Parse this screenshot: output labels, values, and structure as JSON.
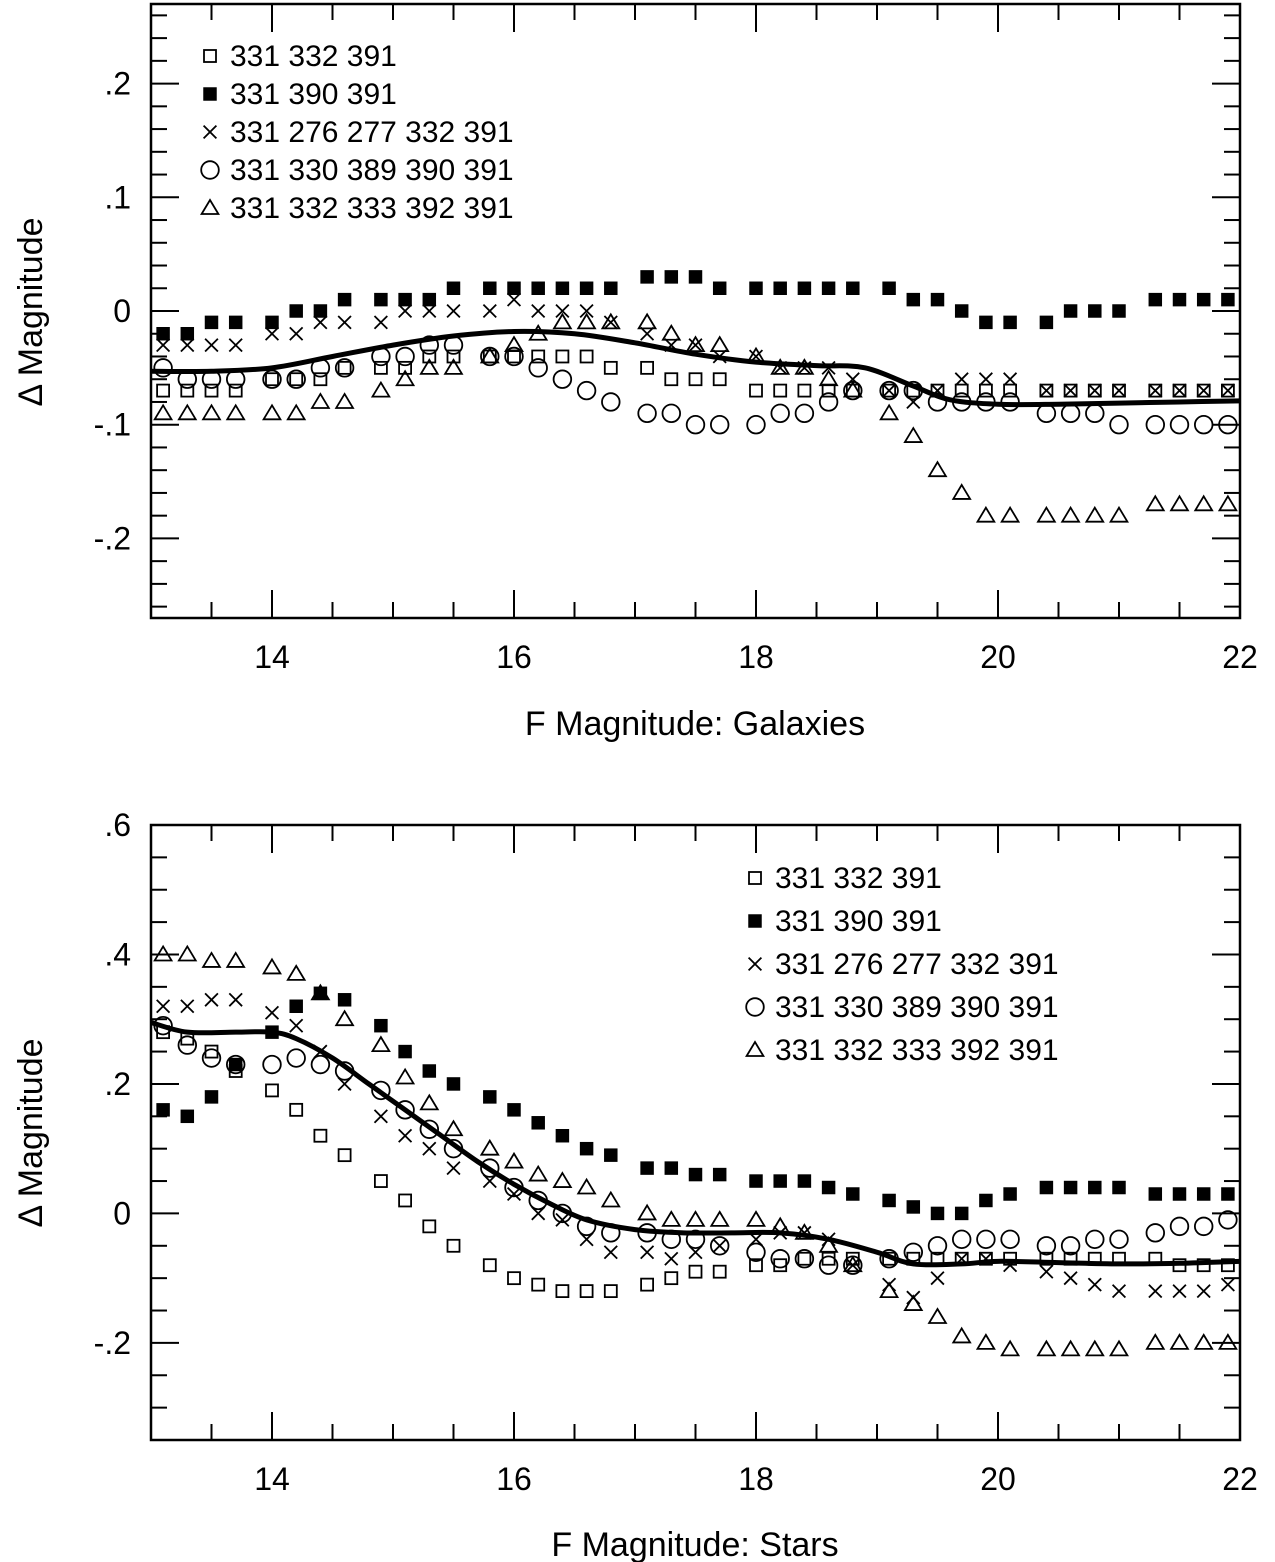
{
  "chart_data": [
    {
      "type": "scatter",
      "xlabel": "F Magnitude: Galaxies",
      "ylabel": "Δ Magnitude",
      "xlim": [
        13,
        22
      ],
      "ylim": [
        -0.27,
        0.27
      ],
      "xticks": [
        14,
        16,
        18,
        20,
        22
      ],
      "xtick_labels": [
        "14",
        "16",
        "18",
        "20",
        "22"
      ],
      "yticks": [
        -0.2,
        -0.1,
        0,
        0.1,
        0.2
      ],
      "ytick_labels": [
        "-.2",
        "-.1",
        "0",
        ".1",
        ".2"
      ],
      "legend_position": "top-left",
      "x": [
        13.1,
        13.3,
        13.5,
        13.7,
        14.0,
        14.2,
        14.4,
        14.6,
        14.9,
        15.1,
        15.3,
        15.5,
        15.8,
        16.0,
        16.2,
        16.4,
        16.6,
        16.8,
        17.1,
        17.3,
        17.5,
        17.7,
        18.0,
        18.2,
        18.4,
        18.6,
        18.8,
        19.1,
        19.3,
        19.5,
        19.7,
        19.9,
        20.1,
        20.4,
        20.6,
        20.8,
        21.0,
        21.3,
        21.5,
        21.7,
        21.9
      ],
      "series": [
        {
          "name": "331 332 391",
          "marker": "open-square",
          "values": [
            -0.07,
            -0.07,
            -0.07,
            -0.07,
            -0.06,
            -0.06,
            -0.06,
            -0.05,
            -0.05,
            -0.05,
            -0.04,
            -0.04,
            -0.04,
            -0.04,
            -0.04,
            -0.04,
            -0.04,
            -0.05,
            -0.05,
            -0.06,
            -0.06,
            -0.06,
            -0.07,
            -0.07,
            -0.07,
            -0.07,
            -0.07,
            -0.07,
            -0.07,
            -0.07,
            -0.07,
            -0.07,
            -0.07,
            -0.07,
            -0.07,
            -0.07,
            -0.07,
            -0.07,
            -0.07,
            -0.07,
            -0.07
          ]
        },
        {
          "name": "331 390 391",
          "marker": "filled-square",
          "values": [
            -0.02,
            -0.02,
            -0.01,
            -0.01,
            -0.01,
            0.0,
            0.0,
            0.01,
            0.01,
            0.01,
            0.01,
            0.02,
            0.02,
            0.02,
            0.02,
            0.02,
            0.02,
            0.02,
            0.03,
            0.03,
            0.03,
            0.02,
            0.02,
            0.02,
            0.02,
            0.02,
            0.02,
            0.02,
            0.01,
            0.01,
            0.0,
            -0.01,
            -0.01,
            -0.01,
            0.0,
            0.0,
            0.0,
            0.01,
            0.01,
            0.01,
            0.01
          ]
        },
        {
          "name": "331 276 277 332 391",
          "marker": "cross",
          "values": [
            -0.03,
            -0.03,
            -0.03,
            -0.03,
            -0.02,
            -0.02,
            -0.01,
            -0.01,
            -0.01,
            0.0,
            0.0,
            0.0,
            0.0,
            0.01,
            0.0,
            0.0,
            0.0,
            -0.01,
            -0.02,
            -0.03,
            -0.03,
            -0.04,
            -0.04,
            -0.05,
            -0.05,
            -0.05,
            -0.06,
            -0.07,
            -0.08,
            -0.07,
            -0.06,
            -0.06,
            -0.06,
            -0.07,
            -0.07,
            -0.07,
            -0.07,
            -0.07,
            -0.07,
            -0.07,
            -0.07
          ]
        },
        {
          "name": "331 330 389 390 391",
          "marker": "open-circle",
          "values": [
            -0.05,
            -0.06,
            -0.06,
            -0.06,
            -0.06,
            -0.06,
            -0.05,
            -0.05,
            -0.04,
            -0.04,
            -0.03,
            -0.03,
            -0.04,
            -0.04,
            -0.05,
            -0.06,
            -0.07,
            -0.08,
            -0.09,
            -0.09,
            -0.1,
            -0.1,
            -0.1,
            -0.09,
            -0.09,
            -0.08,
            -0.07,
            -0.07,
            -0.07,
            -0.08,
            -0.08,
            -0.08,
            -0.08,
            -0.09,
            -0.09,
            -0.09,
            -0.1,
            -0.1,
            -0.1,
            -0.1,
            -0.1
          ]
        },
        {
          "name": "331 332 333 392 391",
          "marker": "open-triangle",
          "values": [
            -0.09,
            -0.09,
            -0.09,
            -0.09,
            -0.09,
            -0.09,
            -0.08,
            -0.08,
            -0.07,
            -0.06,
            -0.05,
            -0.05,
            -0.04,
            -0.03,
            -0.02,
            -0.01,
            -0.01,
            -0.01,
            -0.01,
            -0.02,
            -0.03,
            -0.03,
            -0.04,
            -0.05,
            -0.05,
            -0.06,
            -0.07,
            -0.09,
            -0.11,
            -0.14,
            -0.16,
            -0.18,
            -0.18,
            -0.18,
            -0.18,
            -0.18,
            -0.18,
            -0.17,
            -0.17,
            -0.17,
            -0.17
          ]
        }
      ],
      "curve": {
        "x": [
          13.0,
          13.5,
          14.0,
          14.5,
          15.0,
          15.5,
          16.0,
          16.5,
          17.0,
          17.5,
          18.0,
          18.5,
          18.9,
          19.3,
          19.6,
          20.0,
          20.5,
          21.0,
          21.5,
          22.0
        ],
        "y": [
          -0.053,
          -0.053,
          -0.05,
          -0.04,
          -0.03,
          -0.022,
          -0.018,
          -0.02,
          -0.028,
          -0.038,
          -0.045,
          -0.048,
          -0.05,
          -0.066,
          -0.078,
          -0.082,
          -0.082,
          -0.081,
          -0.08,
          -0.079
        ]
      }
    },
    {
      "type": "scatter",
      "xlabel": "F Magnitude: Stars",
      "ylabel": "Δ Magnitude",
      "xlim": [
        13,
        22
      ],
      "ylim": [
        -0.35,
        0.6
      ],
      "xticks": [
        14,
        16,
        18,
        20,
        22
      ],
      "xtick_labels": [
        "14",
        "16",
        "18",
        "20",
        "22"
      ],
      "yticks": [
        -0.2,
        0,
        0.2,
        0.4,
        0.6
      ],
      "ytick_labels": [
        "-.2",
        "0",
        ".2",
        ".4",
        ".6"
      ],
      "legend_position": "top-right",
      "x": [
        13.1,
        13.3,
        13.5,
        13.7,
        14.0,
        14.2,
        14.4,
        14.6,
        14.9,
        15.1,
        15.3,
        15.5,
        15.8,
        16.0,
        16.2,
        16.4,
        16.6,
        16.8,
        17.1,
        17.3,
        17.5,
        17.7,
        18.0,
        18.2,
        18.4,
        18.6,
        18.8,
        19.1,
        19.3,
        19.5,
        19.7,
        19.9,
        20.1,
        20.4,
        20.6,
        20.8,
        21.0,
        21.3,
        21.5,
        21.7,
        21.9
      ],
      "series": [
        {
          "name": "331 332 391",
          "marker": "open-square",
          "values": [
            0.28,
            0.27,
            0.25,
            0.22,
            0.19,
            0.16,
            0.12,
            0.09,
            0.05,
            0.02,
            -0.02,
            -0.05,
            -0.08,
            -0.1,
            -0.11,
            -0.12,
            -0.12,
            -0.12,
            -0.11,
            -0.1,
            -0.09,
            -0.09,
            -0.08,
            -0.08,
            -0.07,
            -0.07,
            -0.07,
            -0.07,
            -0.07,
            -0.07,
            -0.07,
            -0.07,
            -0.07,
            -0.07,
            -0.07,
            -0.07,
            -0.07,
            -0.07,
            -0.08,
            -0.08,
            -0.08
          ]
        },
        {
          "name": "331 390 391",
          "marker": "filled-square",
          "values": [
            0.16,
            0.15,
            0.18,
            0.23,
            0.28,
            0.32,
            0.34,
            0.33,
            0.29,
            0.25,
            0.22,
            0.2,
            0.18,
            0.16,
            0.14,
            0.12,
            0.1,
            0.09,
            0.07,
            0.07,
            0.06,
            0.06,
            0.05,
            0.05,
            0.05,
            0.04,
            0.03,
            0.02,
            0.01,
            0.0,
            0.0,
            0.02,
            0.03,
            0.04,
            0.04,
            0.04,
            0.04,
            0.03,
            0.03,
            0.03,
            0.03
          ]
        },
        {
          "name": "331 276 277 332 391",
          "marker": "cross",
          "values": [
            0.32,
            0.32,
            0.33,
            0.33,
            0.31,
            0.29,
            0.25,
            0.2,
            0.15,
            0.12,
            0.1,
            0.07,
            0.05,
            0.03,
            0.0,
            -0.01,
            -0.04,
            -0.06,
            -0.06,
            -0.07,
            -0.06,
            -0.05,
            -0.04,
            -0.03,
            -0.03,
            -0.04,
            -0.08,
            -0.11,
            -0.13,
            -0.1,
            -0.07,
            -0.07,
            -0.08,
            -0.09,
            -0.1,
            -0.11,
            -0.12,
            -0.12,
            -0.12,
            -0.12,
            -0.11
          ]
        },
        {
          "name": "331 330 389 390 391",
          "marker": "open-circle",
          "values": [
            0.29,
            0.26,
            0.24,
            0.23,
            0.23,
            0.24,
            0.23,
            0.22,
            0.19,
            0.16,
            0.13,
            0.1,
            0.07,
            0.04,
            0.02,
            0.0,
            -0.02,
            -0.03,
            -0.03,
            -0.04,
            -0.04,
            -0.05,
            -0.06,
            -0.07,
            -0.07,
            -0.08,
            -0.08,
            -0.07,
            -0.06,
            -0.05,
            -0.04,
            -0.04,
            -0.04,
            -0.05,
            -0.05,
            -0.04,
            -0.04,
            -0.03,
            -0.02,
            -0.02,
            -0.01
          ]
        },
        {
          "name": "331 332 333 392 391",
          "marker": "open-triangle",
          "values": [
            0.4,
            0.4,
            0.39,
            0.39,
            0.38,
            0.37,
            0.34,
            0.3,
            0.26,
            0.21,
            0.17,
            0.13,
            0.1,
            0.08,
            0.06,
            0.05,
            0.04,
            0.02,
            0.0,
            -0.01,
            -0.01,
            -0.01,
            -0.01,
            -0.02,
            -0.03,
            -0.05,
            -0.08,
            -0.12,
            -0.14,
            -0.16,
            -0.19,
            -0.2,
            -0.21,
            -0.21,
            -0.21,
            -0.21,
            -0.21,
            -0.2,
            -0.2,
            -0.2,
            -0.2
          ]
        }
      ],
      "curve": {
        "x": [
          13.0,
          13.3,
          13.7,
          14.0,
          14.2,
          14.5,
          14.8,
          15.1,
          15.4,
          15.7,
          16.0,
          16.3,
          16.6,
          17.0,
          17.4,
          17.8,
          18.2,
          18.6,
          19.0,
          19.3,
          19.7,
          20.0,
          20.5,
          21.0,
          21.5,
          22.0
        ],
        "y": [
          0.295,
          0.28,
          0.28,
          0.28,
          0.27,
          0.24,
          0.2,
          0.16,
          0.12,
          0.08,
          0.045,
          0.015,
          -0.01,
          -0.025,
          -0.03,
          -0.03,
          -0.03,
          -0.04,
          -0.06,
          -0.078,
          -0.078,
          -0.074,
          -0.076,
          -0.078,
          -0.077,
          -0.074
        ]
      }
    }
  ]
}
